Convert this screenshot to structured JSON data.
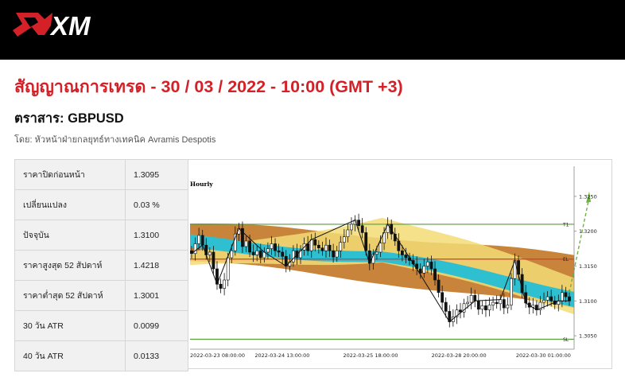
{
  "brand": {
    "logo_text": "XM"
  },
  "header": {
    "title": "สัญญาณการเทรด - 30 / 03 / 2022 - 10:00 (GMT +3)",
    "instrument": "ตราสาร: GBPUSD",
    "author": "โดย: หัวหน้าฝ่ายกลยุทธ์ทางเทคนิค Avramis Despotis"
  },
  "stats": [
    {
      "label": "ราคาปิดก่อนหน้า",
      "value": "1.3095"
    },
    {
      "label": "เปลี่ยนแปลง",
      "value": "0.03 %"
    },
    {
      "label": "ปัจจุบัน",
      "value": "1.3100"
    },
    {
      "label": "ราคาสูงสุด 52 สัปดาห์",
      "value": "1.4218"
    },
    {
      "label": "ราคาต่ำสุด 52 สัปดาห์",
      "value": "1.3001"
    },
    {
      "label": "30 วัน ATR",
      "value": "0.0099"
    },
    {
      "label": "40 วัน ATR",
      "value": "0.0133"
    }
  ],
  "chart_data": {
    "type": "candlestick",
    "timeframe_label": "Hourly",
    "x_tick_labels": [
      "2022-03-23 08:00:00",
      "2022-03-24 13:00:00",
      "2022-03-25 18:00:00",
      "2022-03-28 20:00:00",
      "2022-03-30 01:00:00"
    ],
    "y_tick_values": [
      1.325,
      1.32,
      1.315,
      1.31,
      1.305
    ],
    "y_tick_labels": [
      "1.3250",
      "1.3200",
      "1.3150",
      "1.3100",
      "1.3050"
    ],
    "ylim": [
      1.3033,
      1.3275
    ],
    "levels": [
      {
        "label": "T1",
        "value": 1.321,
        "color": "#5a9e3c"
      },
      {
        "label": "EL",
        "value": 1.316,
        "color": "#d23c3c"
      },
      {
        "label": "SL",
        "value": 1.3045,
        "color": "#5a9e3c"
      }
    ],
    "close_series": [
      1.3168,
      1.3182,
      1.3194,
      1.318,
      1.3166,
      1.317,
      1.3146,
      1.3124,
      1.3118,
      1.313,
      1.3162,
      1.3172,
      1.3196,
      1.3204,
      1.3178,
      1.3186,
      1.317,
      1.3166,
      1.3172,
      1.3162,
      1.317,
      1.3175,
      1.3182,
      1.3172,
      1.317,
      1.3164,
      1.315,
      1.3156,
      1.3172,
      1.3162,
      1.3173,
      1.3182,
      1.3172,
      1.3188,
      1.318,
      1.3176,
      1.3172,
      1.318,
      1.3172,
      1.3163,
      1.3172,
      1.3184,
      1.3192,
      1.3202,
      1.321,
      1.3216,
      1.3208,
      1.3198,
      1.3172,
      1.3154,
      1.3167,
      1.317,
      1.3183,
      1.3198,
      1.321,
      1.3196,
      1.3186,
      1.3172,
      1.3166,
      1.3162,
      1.3158,
      1.3153,
      1.3146,
      1.314,
      1.315,
      1.3156,
      1.3146,
      1.313,
      1.3112,
      1.3098,
      1.3085,
      1.307,
      1.3077,
      1.3087,
      1.3084,
      1.3096,
      1.3098,
      1.3108,
      1.31,
      1.3088,
      1.3093,
      1.3087,
      1.3094,
      1.3098,
      1.3096,
      1.3102,
      1.309,
      1.3094,
      1.3132,
      1.3158,
      1.3138,
      1.3112,
      1.3097,
      1.3091,
      1.3094,
      1.3087,
      1.3098,
      1.3101,
      1.3106,
      1.31,
      1.3095,
      1.31,
      1.3112,
      1.3106,
      1.31
    ],
    "channel_bands": [
      {
        "color": "#c8843a",
        "upper": [
          1.3211,
          1.3194,
          1.3164
        ],
        "lower": [
          1.3157,
          1.3128,
          1.3088
        ],
        "mid_index": 52
      },
      {
        "color": "#f2dc76",
        "upper": [
          1.3166,
          1.3222,
          1.3135
        ],
        "lower": [
          1.3148,
          1.3158,
          1.3083
        ]
      },
      {
        "color": "#2ebfd0",
        "upper": [
          1.3192,
          1.317,
          1.3117
        ],
        "lower": [
          1.3173,
          1.3155,
          1.3095
        ]
      }
    ],
    "projection": {
      "from": 1.3112,
      "to": 1.325
    },
    "grid": false,
    "legend": "none"
  }
}
